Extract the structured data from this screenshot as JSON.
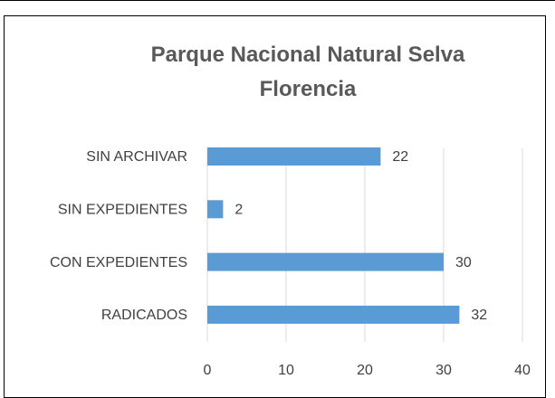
{
  "chart_data": {
    "type": "bar",
    "orientation": "horizontal",
    "title": "Parque Nacional Natural Selva Florencia",
    "categories": [
      "SIN ARCHIVAR",
      "SIN EXPEDIENTES",
      "CON EXPEDIENTES",
      "RADICADOS"
    ],
    "values": [
      22,
      2,
      30,
      32
    ],
    "color": "#5b9bd5",
    "xlim": [
      0,
      40
    ],
    "xticks": [
      0,
      10,
      20,
      30,
      40
    ],
    "grid": true
  }
}
